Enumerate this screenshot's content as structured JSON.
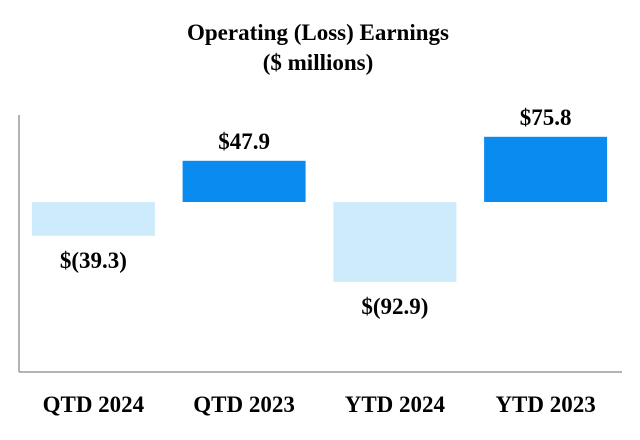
{
  "chart_data": {
    "type": "bar",
    "title": [
      "Operating (Loss) Earnings",
      "($ millions)"
    ],
    "categories": [
      "QTD 2024",
      "QTD 2023",
      "YTD 2024",
      "YTD 2023"
    ],
    "values": [
      -39.3,
      47.9,
      -92.9,
      75.8
    ],
    "data_labels": [
      "$(39.3)",
      "$47.9",
      "$(92.9)",
      "$75.8"
    ],
    "xlabel": "",
    "ylabel": "",
    "ylim": [
      -170,
      110
    ],
    "grid": false,
    "legend": "none",
    "colors": {
      "positive": "#0A8BF0",
      "negative": "#CDEBFB",
      "axis": "#9A9A9A"
    }
  }
}
